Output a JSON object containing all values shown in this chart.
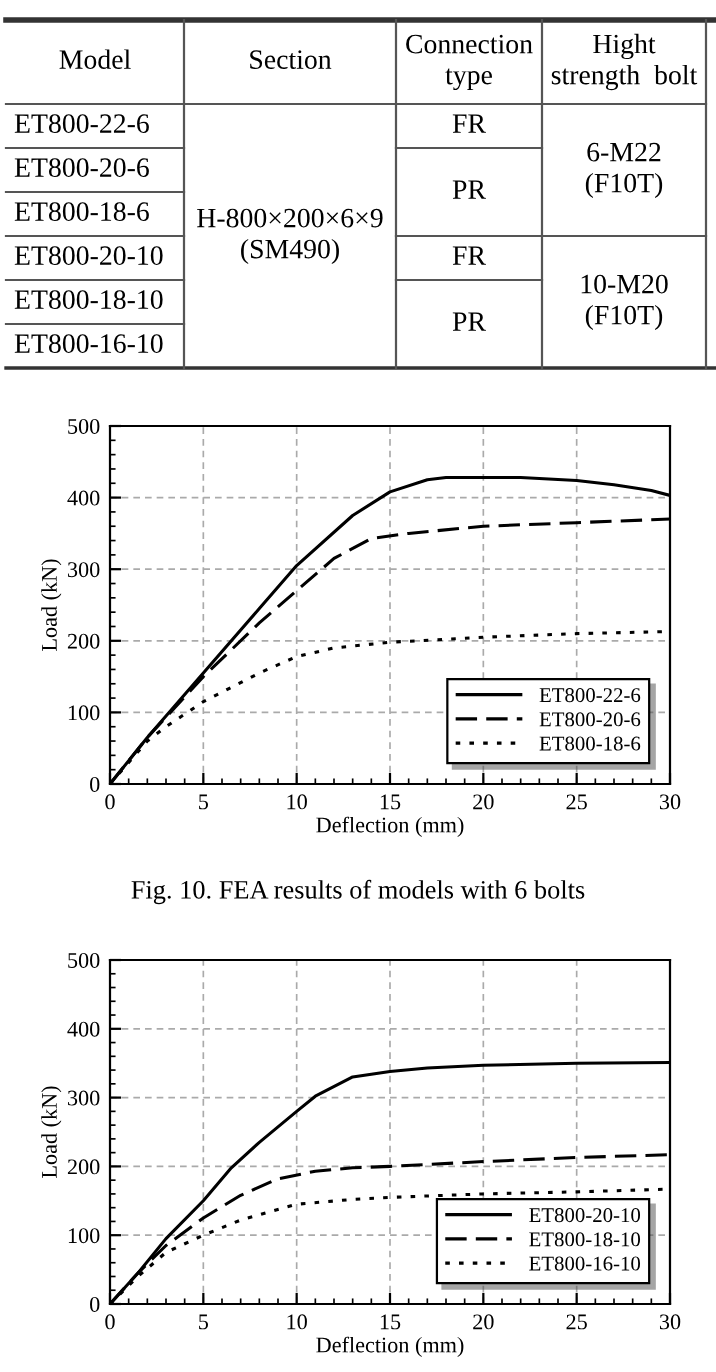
{
  "chart_data": [
    {
      "type": "other",
      "annotations": [
        "Model",
        "Section",
        "Connection\ntype",
        "Hight\nstrength  bolt",
        "ET800-22-6",
        "ET800-20-6",
        "ET800-18-6",
        "ET800-20-10",
        "ET800-18-10",
        "ET800-16-10",
        "H-800×200×6×9\n(SM490)",
        "FR",
        "PR",
        "FR",
        "PR",
        "6-M22\n(F10T)",
        "10-M20\n(F10T)"
      ]
    },
    {
      "type": "line",
      "xlabel": "Deflection (mm)",
      "ylabel": "Load (kN)",
      "xlim": [
        0,
        30
      ],
      "ylim": [
        0,
        500
      ],
      "xticks": [
        0,
        5,
        10,
        15,
        20,
        25,
        30
      ],
      "yticks": [
        0,
        100,
        200,
        300,
        400,
        500
      ],
      "grid": true,
      "legend": "bottom right",
      "annotations": [
        "Fig. 10. FEA results of models with 6 bolts"
      ],
      "series": [
        {
          "name": "ET800-22-6",
          "color": "#000000",
          "line_style": "solid",
          "x": [
            0,
            2,
            5,
            8,
            10,
            13,
            15,
            17,
            18,
            22,
            25,
            27,
            29,
            30
          ],
          "values": [
            0,
            65,
            155,
            245,
            305,
            375,
            408,
            425,
            428,
            428,
            424,
            418,
            410,
            403
          ]
        },
        {
          "name": "ET800-20-6",
          "color": "#000000",
          "line_style": "dashed",
          "x": [
            0,
            2,
            5,
            8,
            10,
            12,
            14,
            16,
            20,
            25,
            30
          ],
          "values": [
            0,
            65,
            150,
            225,
            270,
            315,
            343,
            350,
            360,
            365,
            370
          ]
        },
        {
          "name": "ET800-18-6",
          "color": "#000000",
          "line_style": "dotted",
          "x": [
            0,
            2,
            3,
            5,
            8,
            10,
            12,
            15,
            20,
            25,
            30
          ],
          "values": [
            0,
            60,
            80,
            115,
            155,
            178,
            190,
            198,
            205,
            210,
            213
          ]
        }
      ]
    },
    {
      "type": "line",
      "xlabel": "Deflection (mm)",
      "ylabel": "Load (kN)",
      "xlim": [
        0,
        30
      ],
      "ylim": [
        0,
        500
      ],
      "xticks": [
        0,
        5,
        10,
        15,
        20,
        25,
        30
      ],
      "yticks": [
        0,
        100,
        200,
        300,
        400,
        500
      ],
      "grid": true,
      "legend": "bottom right",
      "series": [
        {
          "name": "ET800-20-10",
          "color": "#000000",
          "line_style": "solid",
          "x": [
            0,
            1.5,
            3,
            5,
            6.5,
            8,
            10,
            11,
            13,
            15,
            17,
            20,
            25,
            30
          ],
          "values": [
            0,
            45,
            95,
            150,
            198,
            235,
            280,
            302,
            330,
            338,
            343,
            347,
            350,
            351
          ]
        },
        {
          "name": "ET800-18-10",
          "color": "#000000",
          "line_style": "dashed",
          "x": [
            0,
            1.5,
            3,
            5,
            7,
            9,
            11,
            13,
            15,
            20,
            25,
            30
          ],
          "values": [
            0,
            45,
            85,
            125,
            158,
            182,
            193,
            198,
            200,
            207,
            213,
            217
          ]
        },
        {
          "name": "ET800-16-10",
          "color": "#000000",
          "line_style": "dotted",
          "x": [
            0,
            1.5,
            3,
            5,
            7,
            10,
            13,
            15,
            20,
            25,
            30
          ],
          "values": [
            0,
            40,
            75,
            100,
            122,
            145,
            152,
            155,
            160,
            163,
            167
          ]
        }
      ]
    }
  ]
}
